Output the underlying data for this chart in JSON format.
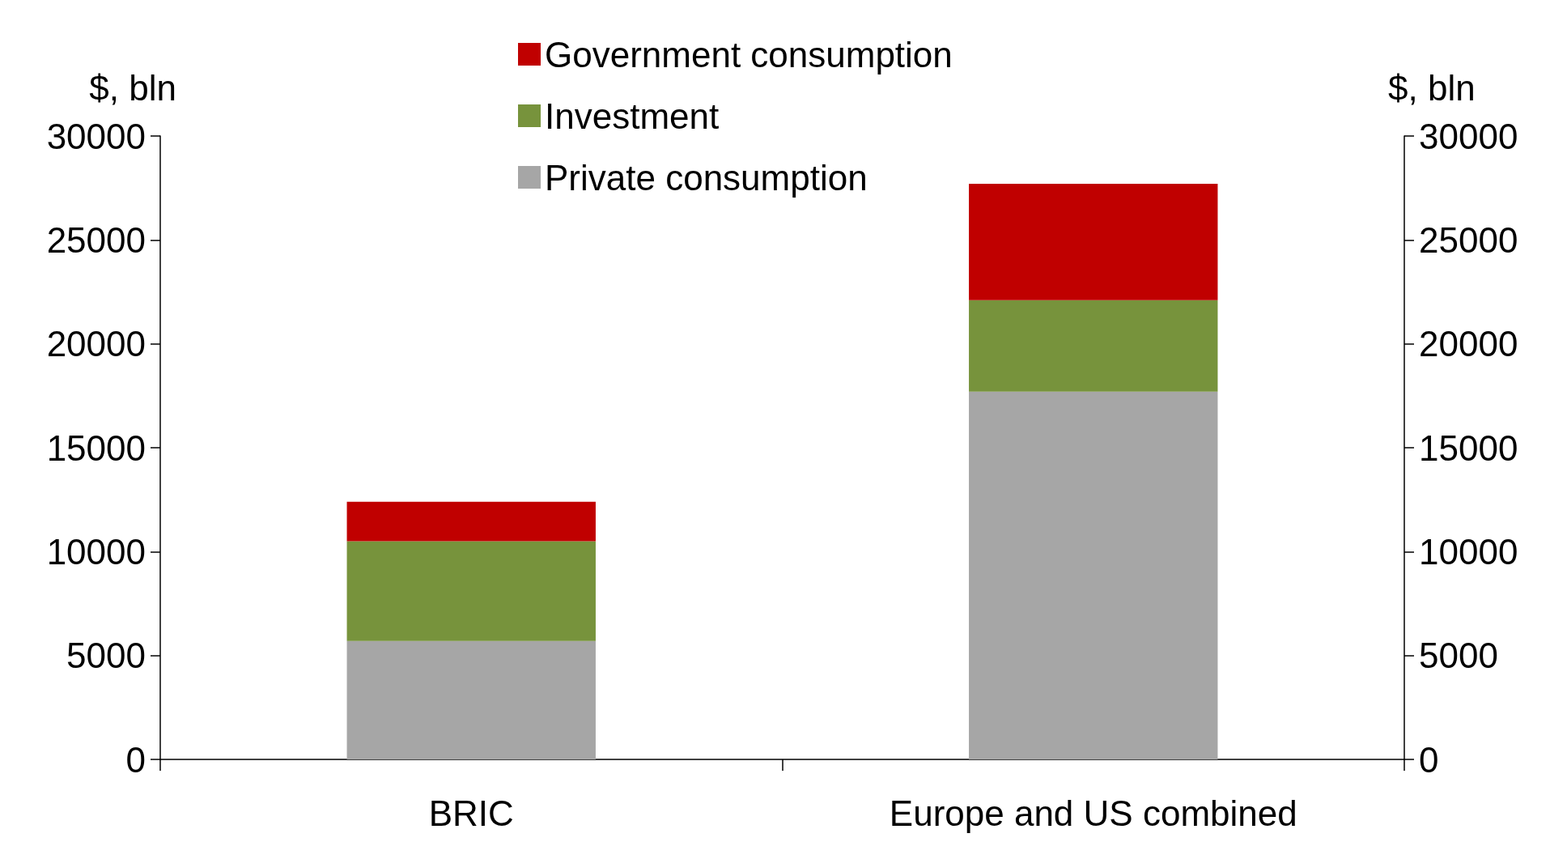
{
  "chart_data": {
    "type": "bar",
    "stacked": true,
    "ylabel": "$, bln",
    "y2label": "$, bln",
    "categories": [
      "BRIC",
      "Europe and US combined"
    ],
    "series": [
      {
        "name": "Private consumption",
        "color": "#a6a6a6",
        "values": [
          5700,
          17700
        ]
      },
      {
        "name": "Investment",
        "color": "#77933c",
        "values": [
          4800,
          4400
        ]
      },
      {
        "name": "Government consumption",
        "color": "#c00000",
        "values": [
          1900,
          5600
        ]
      }
    ],
    "ylim": [
      0,
      30000
    ],
    "yticks": [
      0,
      5000,
      10000,
      15000,
      20000,
      25000,
      30000
    ],
    "y2lim": [
      0,
      30000
    ],
    "y2ticks": [
      0,
      5000,
      10000,
      15000,
      20000,
      25000,
      30000
    ],
    "grid": false,
    "legend": "top"
  }
}
